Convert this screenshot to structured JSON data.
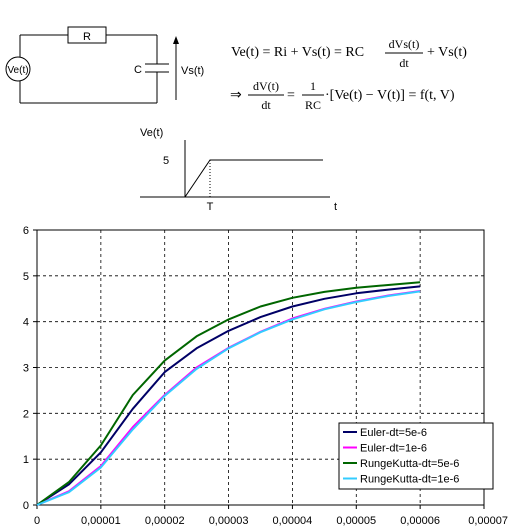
{
  "circuit": {
    "resistor_label": "R",
    "capacitor_label": "C",
    "source_label": "Ve(t)",
    "output_label": "Vs(t)"
  },
  "equations": {
    "line1_lhs": "Ve(t) = Ri + Vs(t) = RC",
    "line1_frac_num": "dVs(t)",
    "line1_frac_den": "dt",
    "line1_rhs": "+ Vs(t)",
    "line2_arrow": "⇒",
    "line2_frac_num": "dV(t)",
    "line2_frac_den": "dt",
    "line2_eq": "=",
    "line2_k_num": "1",
    "line2_k_den": "RC",
    "line2_rhs": "·[Ve(t) − V(t)] = f(t, V)"
  },
  "input_plot": {
    "ylabel": "Ve(t)",
    "level_label": "5",
    "t_mark_label": "T",
    "xlabel": "t"
  },
  "chart_data": {
    "type": "line",
    "title": "",
    "xlabel": "",
    "ylabel": "",
    "xlim": [
      0,
      7e-05
    ],
    "ylim": [
      0,
      6
    ],
    "x_ticks": [
      "0",
      "0,00001",
      "0,00002",
      "0,00003",
      "0,00004",
      "0,00005",
      "0,00006",
      "0,00007"
    ],
    "y_ticks": [
      "0",
      "1",
      "2",
      "3",
      "4",
      "5",
      "6"
    ],
    "grid": true,
    "legend_position": "bottom-right",
    "x": [
      0,
      5e-06,
      1e-05,
      1.5e-05,
      2e-05,
      2.5e-05,
      3e-05,
      3.5e-05,
      4e-05,
      4.5e-05,
      5e-05,
      5.5e-05,
      6e-05
    ],
    "series": [
      {
        "name": "Euler-dt=5e-6",
        "color": "#000066",
        "values": [
          0,
          0.45,
          1.15,
          2.1,
          2.9,
          3.42,
          3.8,
          4.1,
          4.33,
          4.5,
          4.62,
          4.7,
          4.77
        ]
      },
      {
        "name": "Euler-dt=1e-6",
        "color": "#ff00ff",
        "values": [
          0,
          0.3,
          0.85,
          1.7,
          2.4,
          3.0,
          3.43,
          3.78,
          4.07,
          4.28,
          4.44,
          4.57,
          4.67
        ]
      },
      {
        "name": "RungeKutta-dt=5e-6",
        "color": "#006600",
        "values": [
          0,
          0.5,
          1.3,
          2.4,
          3.15,
          3.68,
          4.05,
          4.33,
          4.52,
          4.65,
          4.74,
          4.8,
          4.86
        ]
      },
      {
        "name": "RungeKutta-dt=1e-6",
        "color": "#33ccff",
        "values": [
          0,
          0.28,
          0.82,
          1.65,
          2.38,
          2.97,
          3.42,
          3.77,
          4.05,
          4.27,
          4.43,
          4.56,
          4.66
        ]
      }
    ]
  }
}
